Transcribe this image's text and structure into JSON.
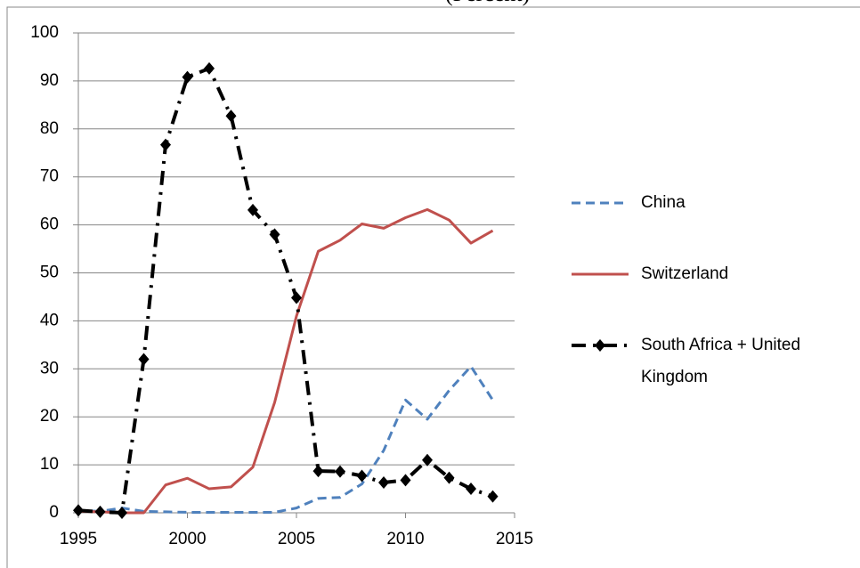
{
  "chart_data": {
    "type": "line",
    "title": "(Percent)",
    "x": [
      1995,
      1996,
      1997,
      1998,
      1999,
      2000,
      2001,
      2002,
      2003,
      2004,
      2005,
      2006,
      2007,
      2008,
      2009,
      2010,
      2011,
      2012,
      2013,
      2014
    ],
    "series": [
      {
        "name": "China",
        "color": "#4f81bd",
        "values": [
          0.5,
          0.3,
          1,
          0.3,
          0.2,
          0.1,
          0.1,
          0.1,
          0.1,
          0.1,
          1,
          3,
          3.2,
          6,
          13,
          23.5,
          19.5,
          25.5,
          30.5,
          23.5
        ]
      },
      {
        "name": "Switzerland",
        "color": "#c0504d",
        "values": [
          0.3,
          0.2,
          0,
          0,
          5.8,
          7.2,
          5,
          5.4,
          9.5,
          23,
          41,
          54.5,
          56.8,
          60.2,
          59.3,
          61.5,
          63.2,
          61,
          56.2,
          58.8
        ]
      },
      {
        "name": "South Africa + United Kingdom",
        "color": "#000000",
        "values": [
          0.5,
          0.2,
          0,
          32,
          76.7,
          90.8,
          92.6,
          82.7,
          63.1,
          58,
          44.8,
          8.7,
          8.6,
          7.7,
          6.3,
          6.8,
          11,
          7.3,
          5,
          3.4
        ]
      }
    ],
    "xlim": [
      1995,
      2015
    ],
    "xticks": [
      1995,
      2000,
      2005,
      2010,
      2015
    ],
    "ylim": [
      0,
      100
    ],
    "yticks": [
      0,
      10,
      20,
      30,
      40,
      50,
      60,
      70,
      80,
      90,
      100
    ],
    "grid": true,
    "legend": "right"
  }
}
